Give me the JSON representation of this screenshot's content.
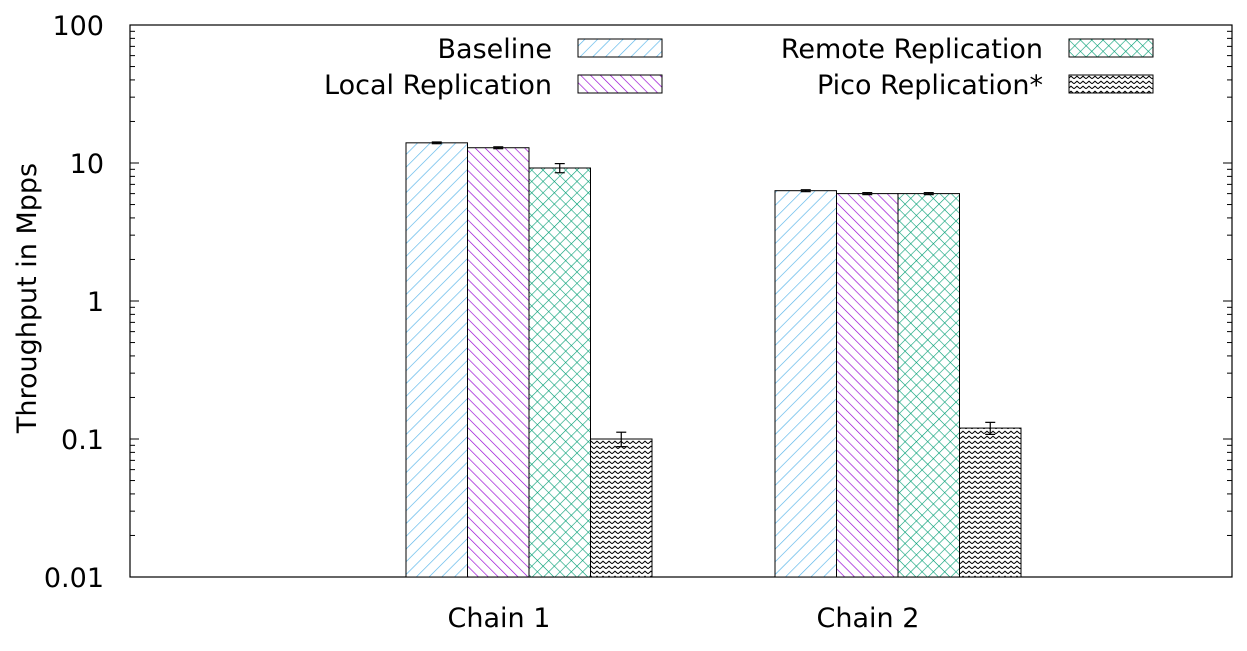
{
  "chart_data": {
    "type": "bar",
    "title": "",
    "xlabel": "",
    "ylabel": "Throughput in Mpps",
    "yscale": "log",
    "ylim": [
      0.01,
      100
    ],
    "yticks": [
      {
        "value": 100,
        "label": "100"
      },
      {
        "value": 10,
        "label": "10"
      },
      {
        "value": 1,
        "label": "1"
      },
      {
        "value": 0.1,
        "label": "0.1"
      },
      {
        "value": 0.01,
        "label": "0.01"
      }
    ],
    "categories": [
      "Chain 1",
      "Chain 2"
    ],
    "series": [
      {
        "name": "Baseline",
        "values": [
          14.0,
          6.3
        ],
        "errors": [
          0.2,
          0.1
        ],
        "color": "#56b4e9",
        "pattern": "diag-right-sparse"
      },
      {
        "name": "Local Replication",
        "values": [
          12.9,
          6.0
        ],
        "errors": [
          0.2,
          0.1
        ],
        "color": "#9400d3",
        "pattern": "diag-left"
      },
      {
        "name": "Remote  Replication",
        "values": [
          9.2,
          6.0
        ],
        "errors": [
          0.7,
          0.1
        ],
        "color": "#009e73",
        "pattern": "crosshatch"
      },
      {
        "name": "Pico Replication*",
        "values": [
          0.1,
          0.12
        ],
        "errors": [
          0.012,
          0.012
        ],
        "color": "#000000",
        "pattern": "zigzag"
      }
    ],
    "legend": "top-inside",
    "grid": false
  }
}
